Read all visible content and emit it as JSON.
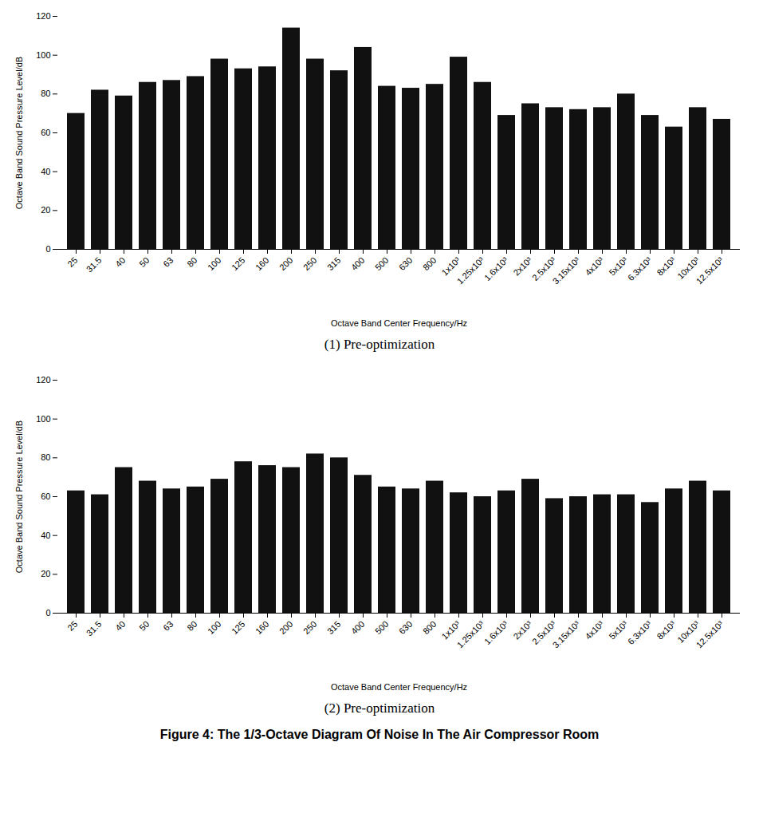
{
  "chart_data": [
    {
      "type": "bar",
      "subtitle": "(1)  Pre-optimization",
      "xlabel": "Octave Band Center Frequency/Hz",
      "ylabel": "Octave Band Sound Pressure Level/dB",
      "categories": [
        "25",
        "31.5",
        "40",
        "50",
        "63",
        "80",
        "100",
        "125",
        "160",
        "200",
        "250",
        "315",
        "400",
        "500",
        "630",
        "800",
        "1x10³",
        "1.25x10³",
        "1.6x10³",
        "2x10³",
        "2.5x10³",
        "3.15x10³",
        "4x10³",
        "5x10³",
        "6.3x10³",
        "8x10³",
        "10x10³",
        "12.5x10³"
      ],
      "values": [
        70,
        82,
        79,
        86,
        87,
        89,
        98,
        93,
        94,
        114,
        98,
        92,
        104,
        84,
        83,
        85,
        99,
        86,
        69,
        75,
        73,
        72,
        73,
        80,
        69,
        63,
        73,
        67
      ],
      "color": "#111111",
      "ylim": [
        0,
        120
      ],
      "yticks": [
        0,
        20,
        40,
        60,
        80,
        100,
        120
      ]
    },
    {
      "type": "bar",
      "subtitle": "(2)  Pre-optimization",
      "xlabel": "Octave Band Center Frequency/Hz",
      "ylabel": "Octave Band Sound Pressure Level/dB",
      "categories": [
        "25",
        "31.5",
        "40",
        "50",
        "63",
        "80",
        "100",
        "125",
        "160",
        "200",
        "250",
        "315",
        "400",
        "500",
        "630",
        "800",
        "1x10³",
        "1.25x10³",
        "1.6x10³",
        "2x10³",
        "2.5x10³",
        "3.15x10³",
        "4x10³",
        "5x10³",
        "6.3x10³",
        "8x10³",
        "10x10³",
        "12.5x10³"
      ],
      "values": [
        63,
        61,
        75,
        68,
        64,
        65,
        69,
        78,
        76,
        75,
        82,
        80,
        71,
        65,
        64,
        68,
        62,
        60,
        63,
        69,
        59,
        60,
        61,
        61,
        57,
        64,
        68,
        63
      ],
      "color": "#111111",
      "ylim": [
        0,
        120
      ],
      "yticks": [
        0,
        20,
        40,
        60,
        80,
        100,
        120
      ]
    }
  ],
  "caption": "Figure 4: The 1/3-Octave Diagram Of Noise In The Air Compressor Room"
}
